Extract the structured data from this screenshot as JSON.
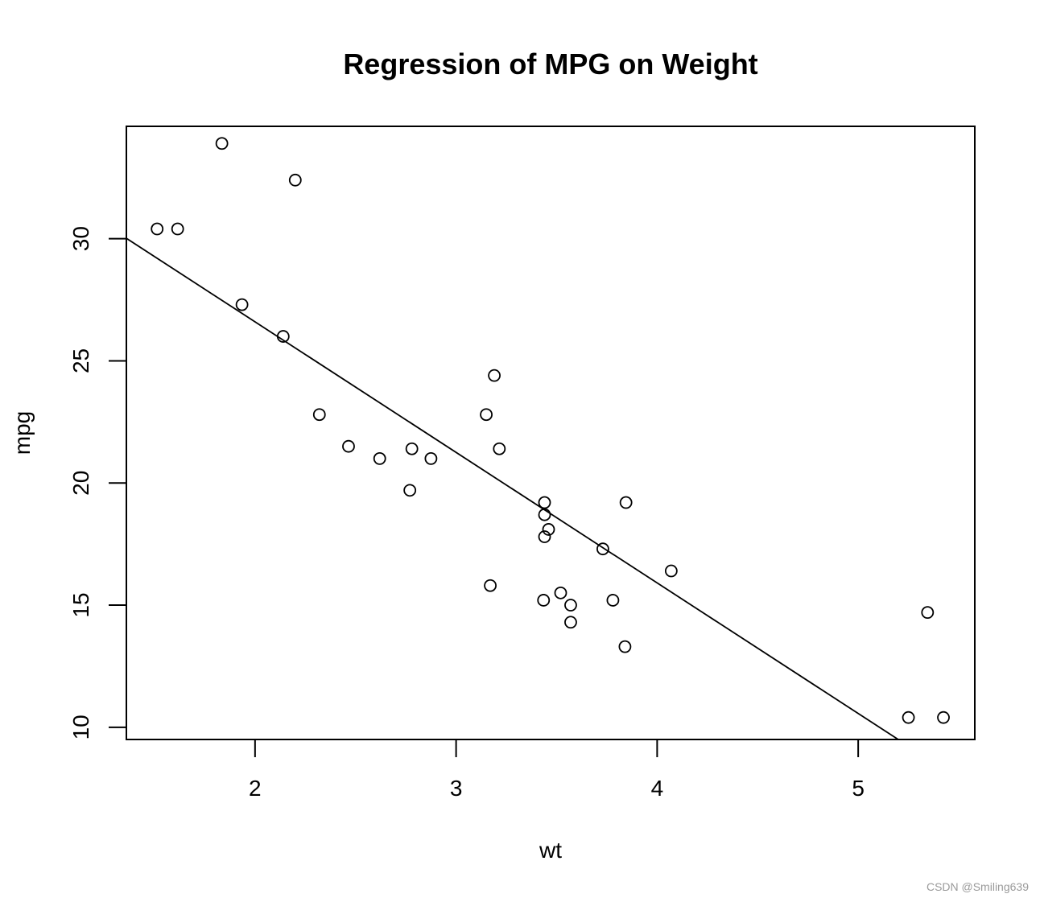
{
  "chart_data": {
    "type": "scatter",
    "title": "Regression of MPG on Weight",
    "xlabel": "wt",
    "ylabel": "mpg",
    "xlim": [
      1.36,
      5.58
    ],
    "ylim": [
      9.5,
      34.6
    ],
    "xticks": [
      2,
      3,
      4,
      5
    ],
    "yticks": [
      10,
      15,
      20,
      25,
      30
    ],
    "grid": false,
    "points": [
      {
        "x": 2.62,
        "y": 21.0
      },
      {
        "x": 2.875,
        "y": 21.0
      },
      {
        "x": 2.32,
        "y": 22.8
      },
      {
        "x": 3.215,
        "y": 21.4
      },
      {
        "x": 3.44,
        "y": 18.7
      },
      {
        "x": 3.46,
        "y": 18.1
      },
      {
        "x": 3.57,
        "y": 14.3
      },
      {
        "x": 3.19,
        "y": 24.4
      },
      {
        "x": 3.15,
        "y": 22.8
      },
      {
        "x": 3.44,
        "y": 19.2
      },
      {
        "x": 3.44,
        "y": 17.8
      },
      {
        "x": 4.07,
        "y": 16.4
      },
      {
        "x": 3.73,
        "y": 17.3
      },
      {
        "x": 3.78,
        "y": 15.2
      },
      {
        "x": 5.25,
        "y": 10.4
      },
      {
        "x": 5.424,
        "y": 10.4
      },
      {
        "x": 5.345,
        "y": 14.7
      },
      {
        "x": 2.2,
        "y": 32.4
      },
      {
        "x": 1.615,
        "y": 30.4
      },
      {
        "x": 1.835,
        "y": 33.9
      },
      {
        "x": 2.465,
        "y": 21.5
      },
      {
        "x": 3.52,
        "y": 15.5
      },
      {
        "x": 3.435,
        "y": 15.2
      },
      {
        "x": 3.84,
        "y": 13.3
      },
      {
        "x": 3.845,
        "y": 19.2
      },
      {
        "x": 1.935,
        "y": 27.3
      },
      {
        "x": 2.14,
        "y": 26.0
      },
      {
        "x": 1.513,
        "y": 30.4
      },
      {
        "x": 3.17,
        "y": 15.8
      },
      {
        "x": 2.77,
        "y": 19.7
      },
      {
        "x": 3.57,
        "y": 15.0
      },
      {
        "x": 2.78,
        "y": 21.4
      }
    ],
    "regression_line": {
      "intercept": 37.285,
      "slope": -5.344
    }
  },
  "watermark": "CSDN @Smiling639"
}
